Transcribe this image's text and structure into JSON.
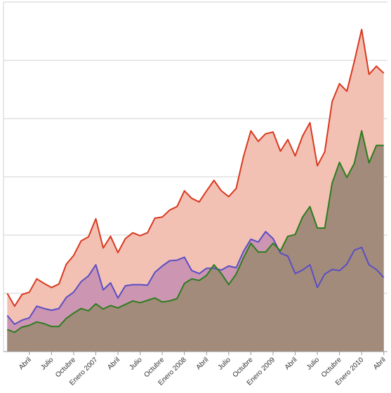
{
  "chart_data": {
    "type": "area",
    "title": "",
    "xlabel": "",
    "ylabel": "",
    "ylim": [
      0,
      6
    ],
    "grid": true,
    "legend": "none",
    "x_tick_labels": [
      "Abril",
      "Julio",
      "Octubre",
      "Enero 2007",
      "Abril",
      "Julio",
      "Octubre",
      "Enero 2008",
      "Abril",
      "Julio",
      "Octubre",
      "Enero 2009",
      "Abril",
      "Julio",
      "Octubre",
      "Enero 2010",
      "Abril"
    ],
    "x_tick_months": [
      3,
      6,
      9,
      12,
      15,
      18,
      21,
      24,
      27,
      30,
      33,
      36,
      39,
      42,
      45,
      48,
      51
    ],
    "x_range": [
      -0.5,
      51.5
    ],
    "series": [
      {
        "color": "#d9391e",
        "fill": "#f3c0b4",
        "values": [
          1.0,
          0.78,
          0.98,
          1.02,
          1.25,
          1.17,
          1.1,
          1.16,
          1.5,
          1.65,
          1.9,
          1.97,
          2.28,
          1.78,
          1.98,
          1.7,
          1.94,
          2.04,
          1.99,
          2.04,
          2.29,
          2.31,
          2.43,
          2.49,
          2.76,
          2.63,
          2.57,
          2.76,
          2.94,
          2.76,
          2.66,
          2.8,
          3.35,
          3.79,
          3.61,
          3.74,
          3.77,
          3.44,
          3.64,
          3.36,
          3.7,
          3.93,
          3.19,
          3.43,
          4.29,
          4.6,
          4.47,
          4.98,
          5.53,
          4.76,
          4.9,
          4.78
        ]
      },
      {
        "color": "#5a4ec4",
        "fill": "#cc95b2",
        "values": [
          0.62,
          0.47,
          0.54,
          0.58,
          0.78,
          0.74,
          0.71,
          0.74,
          0.93,
          1.02,
          1.2,
          1.3,
          1.49,
          1.06,
          1.18,
          0.92,
          1.13,
          1.15,
          1.15,
          1.14,
          1.36,
          1.47,
          1.56,
          1.57,
          1.62,
          1.39,
          1.34,
          1.43,
          1.43,
          1.4,
          1.47,
          1.44,
          1.72,
          1.93,
          1.88,
          2.06,
          1.94,
          1.69,
          1.64,
          1.34,
          1.4,
          1.49,
          1.1,
          1.33,
          1.41,
          1.39,
          1.5,
          1.74,
          1.79,
          1.49,
          1.41,
          1.27
        ]
      },
      {
        "color": "#2b7d1d",
        "fill": "#a38b7b",
        "values": [
          0.38,
          0.33,
          0.42,
          0.45,
          0.51,
          0.48,
          0.43,
          0.43,
          0.57,
          0.66,
          0.74,
          0.7,
          0.82,
          0.73,
          0.79,
          0.75,
          0.81,
          0.87,
          0.84,
          0.88,
          0.92,
          0.85,
          0.87,
          0.91,
          1.17,
          1.25,
          1.22,
          1.31,
          1.49,
          1.34,
          1.15,
          1.33,
          1.61,
          1.86,
          1.71,
          1.71,
          1.86,
          1.73,
          1.98,
          2.01,
          2.31,
          2.49,
          2.12,
          2.12,
          2.89,
          3.25,
          2.99,
          3.23,
          3.79,
          3.24,
          3.54,
          3.54
        ]
      }
    ]
  }
}
